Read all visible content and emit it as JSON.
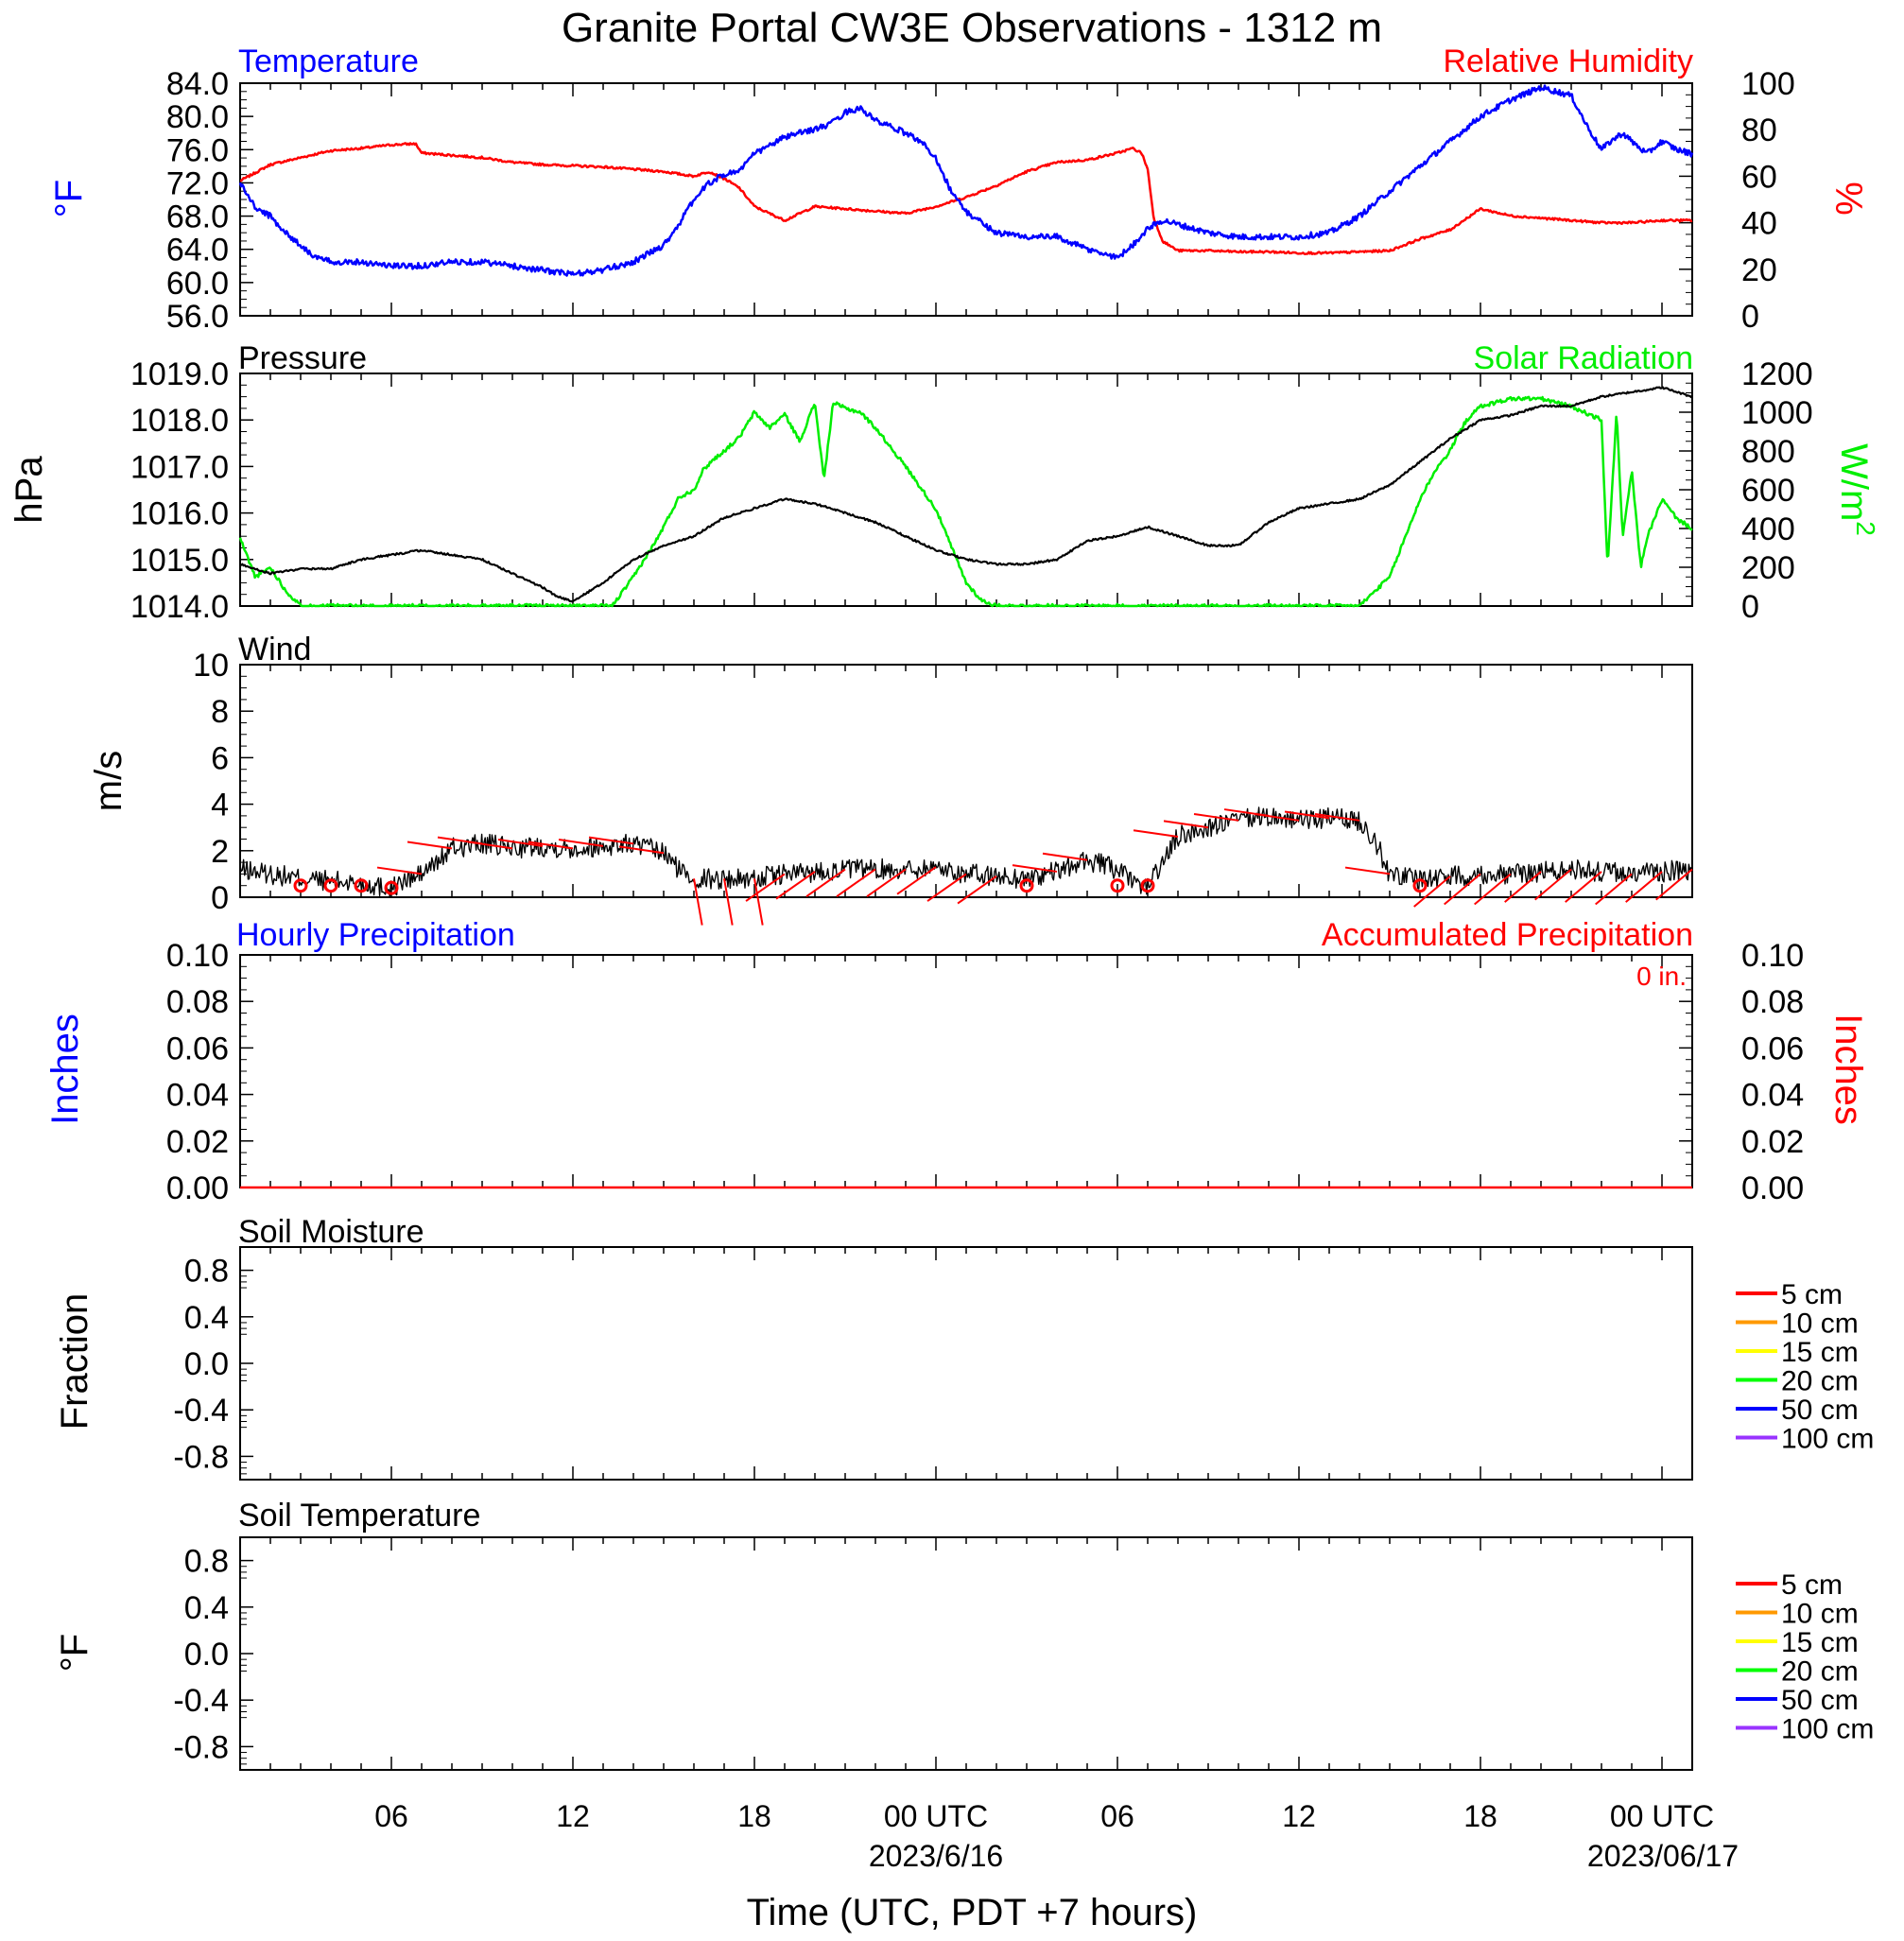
{
  "title": "Granite Portal CW3E Observations - 1312 m",
  "x_axis": {
    "label": "Time (UTC, PDT +7 hours)",
    "tick_labels": [
      "06",
      "12",
      "18",
      "00 UTC",
      "06",
      "12",
      "18",
      "00 UTC"
    ],
    "date_labels": [
      "2023/6/16",
      "2023/06/17"
    ],
    "range_hours": [
      1,
      49
    ]
  },
  "panels": {
    "temp_rh": {
      "left_title": "Temperature",
      "right_title": "Relative Humidity",
      "left_unit": "°F",
      "right_unit": "%",
      "left_ticks": [
        "84.0",
        "80.0",
        "76.0",
        "72.0",
        "68.0",
        "64.0",
        "60.0",
        "56.0"
      ],
      "right_ticks": [
        "100",
        "80",
        "60",
        "40",
        "20",
        "0"
      ]
    },
    "pressure": {
      "left_title": "Pressure",
      "right_title": "Solar Radiation",
      "left_unit": "hPa",
      "right_unit": "W/m",
      "right_unit_sup": "2",
      "left_ticks": [
        "1019.0",
        "1018.0",
        "1017.0",
        "1016.0",
        "1015.0",
        "1014.0"
      ],
      "right_ticks": [
        "1200",
        "1000",
        "800",
        "600",
        "400",
        "200",
        "0"
      ]
    },
    "wind": {
      "left_title": "Wind",
      "left_unit": "m/s",
      "left_ticks": [
        "10",
        "8",
        "6",
        "4",
        "2",
        "0"
      ]
    },
    "precip": {
      "left_title": "Hourly Precipitation",
      "right_title": "Accumulated Precipitation",
      "total_label": "0 in.",
      "left_unit": "Inches",
      "right_unit": "Inches",
      "left_ticks": [
        "0.10",
        "0.08",
        "0.06",
        "0.04",
        "0.02",
        "0.00"
      ],
      "right_ticks": [
        "0.10",
        "0.08",
        "0.06",
        "0.04",
        "0.02",
        "0.00"
      ]
    },
    "soil_moisture": {
      "left_title": "Soil Moisture",
      "left_unit": "Fraction",
      "left_ticks": [
        "0.8",
        "0.4",
        "0.0",
        "-0.4",
        "-0.8"
      ]
    },
    "soil_temp": {
      "left_title": "Soil Temperature",
      "left_unit": "°F",
      "left_ticks": [
        "0.8",
        "0.4",
        "0.0",
        "-0.4",
        "-0.8"
      ]
    }
  },
  "soil_legend": [
    {
      "label": "5 cm",
      "color": "#ff0000"
    },
    {
      "label": "10 cm",
      "color": "#ff9900"
    },
    {
      "label": "15 cm",
      "color": "#ffff00"
    },
    {
      "label": "20 cm",
      "color": "#00ff00"
    },
    {
      "label": "50 cm",
      "color": "#0000ff"
    },
    {
      "label": "100 cm",
      "color": "#9933ff"
    }
  ],
  "colors": {
    "temperature": "#0000ff",
    "humidity": "#ff0000",
    "pressure": "#000000",
    "solar": "#00ee00",
    "wind": "#000000",
    "wind_barb": "#ff0000",
    "precip": "#ff0000"
  },
  "chart_data": [
    {
      "type": "line",
      "panel": "temp_rh",
      "x_unit": "hours since 2023-06-15 00 UTC",
      "xlim": [
        1,
        49
      ],
      "series": [
        {
          "name": "Temperature",
          "axis": "left",
          "unit": "°F",
          "ylim": [
            56,
            84
          ],
          "x": [
            1,
            1.5,
            2,
            2.5,
            3,
            3.5,
            4,
            5,
            6,
            7,
            8,
            9,
            10,
            11,
            12,
            13,
            14,
            15,
            15.5,
            16,
            16.5,
            17,
            17.5,
            18,
            19,
            20,
            20.5,
            21,
            21.5,
            22,
            23,
            23.5,
            24,
            24.5,
            25,
            26,
            27,
            28,
            29,
            30,
            30.5,
            31,
            31.5,
            32,
            32.5,
            33,
            34,
            35,
            36,
            37,
            38,
            39,
            40,
            41,
            42,
            43,
            44,
            44.5,
            45,
            45.5,
            46,
            46.3,
            46.7,
            47,
            47.5,
            48,
            48.5,
            49
          ],
          "values": [
            72,
            69,
            68,
            66,
            64.5,
            63,
            62.5,
            62.5,
            62,
            62,
            62.5,
            62.5,
            62,
            61.5,
            61,
            61.5,
            62.5,
            64.5,
            67,
            70,
            72,
            73,
            73.5,
            75.5,
            77.5,
            78.5,
            79,
            80.5,
            81,
            79.5,
            78,
            77,
            75,
            71,
            68.5,
            66,
            65.5,
            65.5,
            64,
            63,
            64.5,
            66.5,
            67.5,
            67,
            66.5,
            66,
            65.5,
            65.5,
            65.5,
            66,
            68,
            71,
            74,
            77,
            80,
            82,
            83.5,
            83,
            82.5,
            79,
            76,
            77,
            78,
            77,
            75.5,
            77,
            76,
            75.5
          ]
        },
        {
          "name": "Relative Humidity",
          "axis": "right",
          "unit": "%",
          "ylim": [
            0,
            100
          ],
          "x": [
            1,
            2,
            3,
            4,
            5,
            6,
            6.8,
            7,
            8,
            9,
            10,
            11,
            12,
            13,
            14,
            15,
            16,
            16.5,
            17,
            17.5,
            18,
            19,
            20,
            21,
            22,
            23,
            24,
            25,
            26,
            27,
            28,
            29,
            30,
            30.5,
            30.8,
            31,
            31.2,
            31.5,
            32,
            33,
            34,
            35,
            36,
            37,
            38,
            39,
            40,
            41,
            42,
            43,
            44,
            45,
            46,
            47,
            48,
            49
          ],
          "values": [
            58,
            65,
            68,
            71,
            72,
            73.5,
            74,
            70,
            69,
            68,
            66,
            65,
            64.5,
            64,
            63,
            62,
            60,
            62,
            59,
            55,
            47,
            41,
            47,
            46,
            45,
            44,
            47,
            51,
            56,
            62,
            66,
            67,
            70,
            72,
            70,
            63,
            42,
            32,
            28,
            28,
            27.5,
            27.5,
            27,
            27,
            27.5,
            28,
            33,
            37,
            46,
            43,
            42,
            41,
            40,
            40,
            41,
            41
          ]
        }
      ]
    },
    {
      "type": "line",
      "panel": "pressure",
      "x_unit": "hours since 2023-06-15 00 UTC",
      "xlim": [
        1,
        49
      ],
      "series": [
        {
          "name": "Pressure",
          "axis": "left",
          "unit": "hPa",
          "ylim": [
            1014,
            1019
          ],
          "x": [
            1,
            2,
            3,
            4,
            5,
            6,
            7,
            8,
            9,
            10,
            11,
            11.5,
            12,
            13,
            14,
            15,
            16,
            17,
            18,
            18.5,
            19,
            20,
            21,
            22,
            23,
            24,
            25,
            26,
            27,
            28,
            29,
            30,
            31,
            32,
            33,
            34,
            35,
            36,
            37,
            38,
            39,
            40,
            41,
            42,
            43,
            44,
            45,
            46,
            47,
            48,
            49
          ],
          "values": [
            1014.9,
            1014.7,
            1014.8,
            1014.8,
            1015,
            1015.1,
            1015.2,
            1015.1,
            1015,
            1014.7,
            1014.4,
            1014.2,
            1014.1,
            1014.5,
            1015,
            1015.3,
            1015.5,
            1015.9,
            1016.1,
            1016.2,
            1016.3,
            1016.2,
            1016,
            1015.8,
            1015.5,
            1015.2,
            1015,
            1014.9,
            1014.9,
            1015,
            1015.4,
            1015.5,
            1015.7,
            1015.5,
            1015.3,
            1015.3,
            1015.8,
            1016.1,
            1016.2,
            1016.3,
            1016.6,
            1017.1,
            1017.6,
            1018,
            1018.1,
            1018.3,
            1018.3,
            1018.5,
            1018.6,
            1018.7,
            1018.5
          ]
        },
        {
          "name": "Solar Radiation",
          "axis": "right",
          "unit": "W/m2",
          "ylim": [
            0,
            1200
          ],
          "x": [
            1,
            1.5,
            2,
            2.5,
            3,
            12,
            13.3,
            14,
            14.8,
            15.5,
            16,
            16.3,
            16.6,
            17,
            17.5,
            18,
            18.5,
            19,
            19.5,
            20,
            20.3,
            20.6,
            21,
            21.5,
            22,
            23,
            24,
            25,
            25.5,
            26,
            27,
            38,
            39,
            39.5,
            40,
            40.5,
            41,
            41.3,
            41.6,
            42,
            43,
            44,
            45,
            46,
            46.2,
            46.5,
            46.7,
            47,
            47.3,
            47.5,
            48,
            48.5,
            49
          ],
          "values": [
            350,
            150,
            200,
            80,
            0,
            0,
            0,
            150,
            350,
            560,
            600,
            700,
            750,
            800,
            870,
            1000,
            920,
            990,
            850,
            1050,
            650,
            1050,
            1020,
            1000,
            920,
            720,
            500,
            120,
            30,
            0,
            0,
            0,
            150,
            350,
            550,
            700,
            800,
            900,
            970,
            1030,
            1070,
            1070,
            1030,
            960,
            200,
            1000,
            350,
            700,
            200,
            350,
            550,
            450,
            400
          ]
        }
      ]
    },
    {
      "type": "line",
      "panel": "wind",
      "x_unit": "hours since 2023-06-15 00 UTC",
      "xlim": [
        1,
        49
      ],
      "series": [
        {
          "name": "Wind speed",
          "axis": "left",
          "unit": "m/s",
          "ylim": [
            0,
            10
          ],
          "x": [
            1,
            2,
            3,
            4,
            5,
            6,
            6.5,
            7,
            7.5,
            8,
            9,
            10,
            11,
            12,
            13,
            14,
            15,
            15.5,
            16,
            17,
            18,
            19,
            20,
            21,
            22,
            23,
            24,
            25,
            26,
            27,
            28,
            29,
            30,
            30.5,
            31,
            31.5,
            32,
            33,
            34,
            35,
            36,
            37,
            38,
            38.5,
            39,
            40,
            41,
            42,
            43,
            44,
            45,
            46,
            47,
            48,
            49
          ],
          "values": [
            1.2,
            1,
            0.8,
            0.7,
            0.6,
            0.4,
            0.7,
            1,
            1.5,
            2.1,
            2.3,
            2.1,
            2.2,
            2.1,
            2.2,
            2.3,
            1.9,
            1.2,
            0.8,
            0.8,
            0.8,
            1,
            1.1,
            1.2,
            1.2,
            1.2,
            1.3,
            1,
            0.9,
            0.8,
            1.1,
            1.6,
            1.2,
            0.6,
            0.5,
            1.5,
            2.6,
            3,
            3.3,
            3.5,
            3.3,
            3.4,
            3.3,
            2.5,
            1,
            0.8,
            0.9,
            1,
            1,
            1.1,
            1.2,
            1.1,
            1,
            1.1,
            1.2
          ]
        }
      ]
    },
    {
      "type": "line",
      "panel": "precip",
      "x_unit": "hours since 2023-06-15 00 UTC",
      "xlim": [
        1,
        49
      ],
      "series": [
        {
          "name": "Hourly Precipitation",
          "axis": "left",
          "unit": "in",
          "ylim": [
            0,
            0.1
          ],
          "x": [
            1,
            49
          ],
          "values": [
            0,
            0
          ]
        },
        {
          "name": "Accumulated Precipitation",
          "axis": "right",
          "unit": "in",
          "ylim": [
            0,
            0.1
          ],
          "x": [
            1,
            49
          ],
          "values": [
            0,
            0
          ]
        }
      ]
    },
    {
      "type": "line",
      "panel": "soil_moisture",
      "ylim": [
        -1,
        1
      ],
      "series": []
    },
    {
      "type": "line",
      "panel": "soil_temp",
      "ylim": [
        -1,
        1
      ],
      "series": []
    }
  ]
}
